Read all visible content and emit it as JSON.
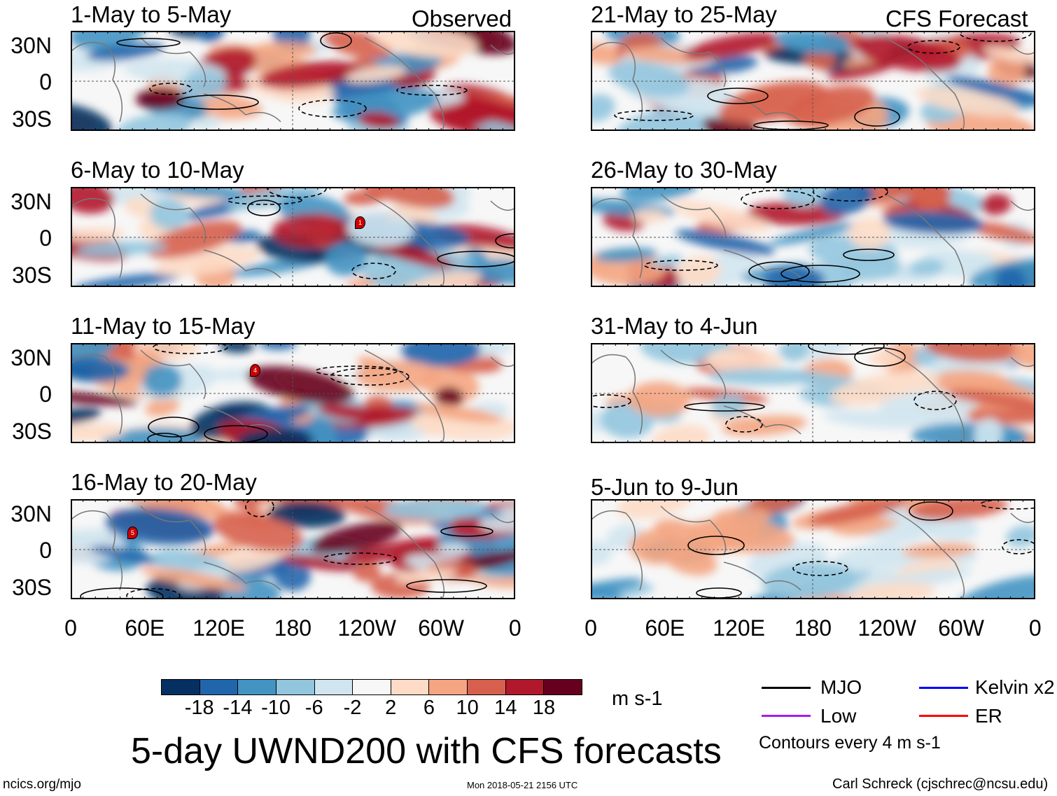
{
  "header": {
    "left_label": "Observed",
    "right_label": "CFS Forecast"
  },
  "panels": {
    "left": [
      {
        "title": "1-May to 5-May"
      },
      {
        "title": "6-May to 10-May"
      },
      {
        "title": "11-May to 15-May"
      },
      {
        "title": "16-May to 20-May"
      }
    ],
    "right": [
      {
        "title": "21-May to 25-May"
      },
      {
        "title": "26-May to 30-May"
      },
      {
        "title": "31-May to 4-Jun"
      },
      {
        "title": "5-Jun to 9-Jun"
      }
    ]
  },
  "axes": {
    "lat_labels": [
      "30N",
      "0",
      "30S"
    ],
    "lon_labels": [
      "0",
      "60E",
      "120E",
      "180",
      "120W",
      "60W",
      "0"
    ]
  },
  "storm_markers": [
    "1",
    "4",
    "5"
  ],
  "colorbar": {
    "colors": [
      "#053061",
      "#2166ac",
      "#4393c3",
      "#92c5de",
      "#d1e5f0",
      "#f7f7f7",
      "#fddbc7",
      "#f4a582",
      "#d6604d",
      "#b2182b",
      "#67001f"
    ],
    "tick_labels": [
      "-18",
      "-14",
      "-10",
      "-6",
      "-2",
      "2",
      "6",
      "10",
      "14",
      "18"
    ],
    "units": "m s-1"
  },
  "legend": {
    "items": [
      {
        "label": "MJO",
        "color": "#000000"
      },
      {
        "label": "Kelvin x2",
        "color": "#0000ff"
      },
      {
        "label": "Low",
        "color": "#a020f0"
      },
      {
        "label": "ER",
        "color": "#ff0000"
      }
    ],
    "note": "Contours every 4 m s-1"
  },
  "title": "5-day UWND200 with CFS forecasts",
  "footer": {
    "left": "ncics.org/mjo",
    "center": "Mon 2018-05-21 2156 UTC",
    "right": "Carl Schreck (cjschrec@ncsu.edu)"
  }
}
